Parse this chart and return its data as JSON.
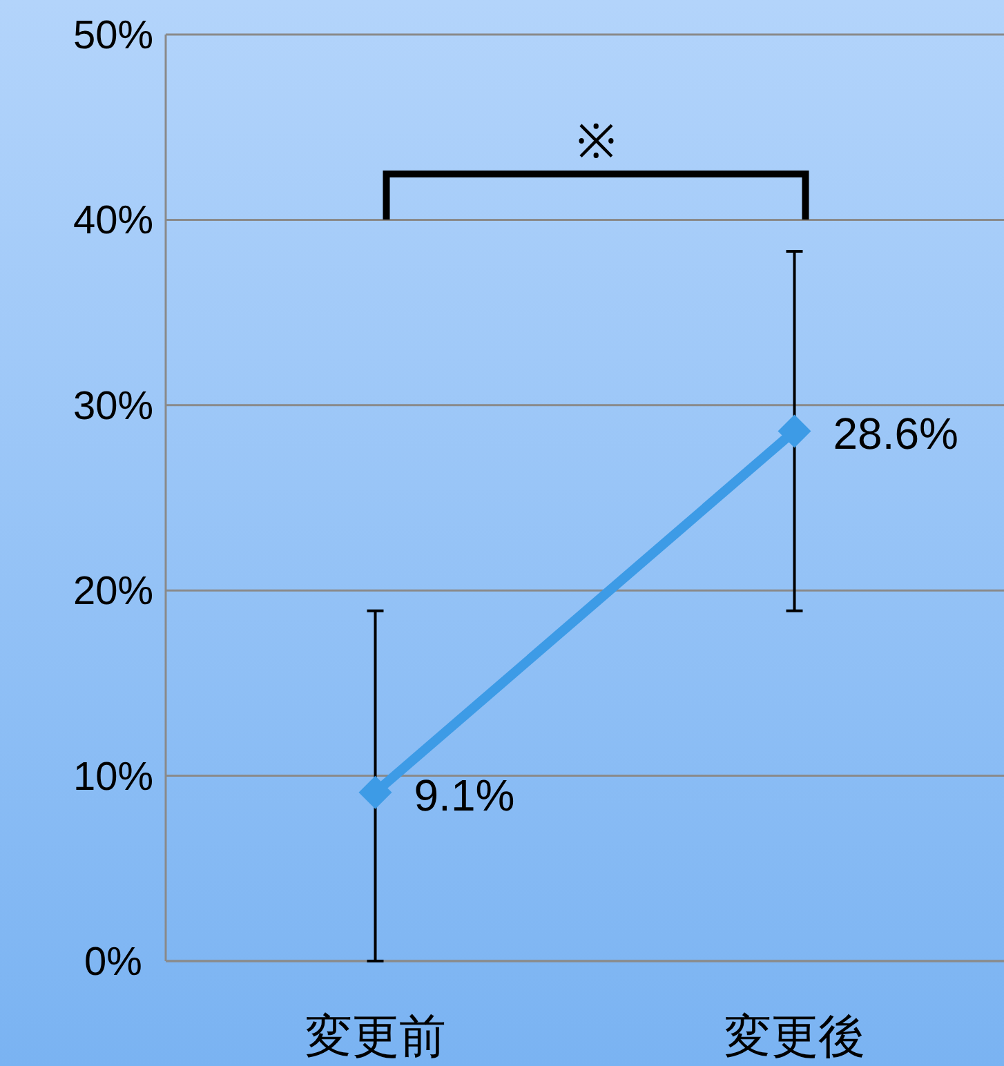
{
  "chart_data": {
    "type": "line",
    "categories": [
      "変更前",
      "変更後"
    ],
    "series": [
      {
        "color": "#3d9be6",
        "values": [
          9.1,
          28.6
        ],
        "errors": [
          [
            0,
            18.9
          ],
          [
            18.9,
            38.3
          ]
        ],
        "value_labels": [
          "9.1%",
          "28.6%"
        ]
      }
    ],
    "ylim": [
      0,
      50
    ],
    "yticks": [
      {
        "value": 0,
        "label": "0%"
      },
      {
        "value": 10,
        "label": "10%"
      },
      {
        "value": 20,
        "label": "20%"
      },
      {
        "value": 30,
        "label": "30%"
      },
      {
        "value": 40,
        "label": "40%"
      },
      {
        "value": 50,
        "label": "50%"
      }
    ],
    "grid": "y",
    "marker": "diamond",
    "line_style": "solid",
    "annotations": [
      "※"
    ]
  }
}
